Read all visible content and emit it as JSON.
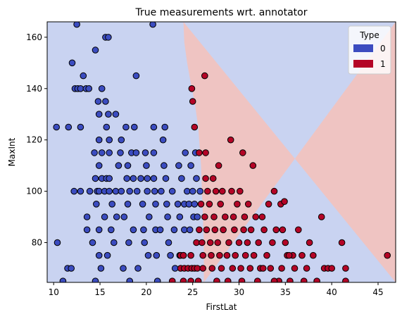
{
  "chart_data": {
    "type": "scatter",
    "title": "True measurements wrt. annotator",
    "xlabel": "FirstLat",
    "ylabel": "MaxInt",
    "xlim": [
      9.3,
      46.9
    ],
    "ylim": [
      64.5,
      166
    ],
    "xticks": [
      10,
      15,
      20,
      25,
      30,
      35,
      40,
      45
    ],
    "yticks": [
      80,
      100,
      120,
      140,
      160
    ],
    "grid": false,
    "legend": {
      "title": "Type",
      "placement": "top-right",
      "entries": [
        {
          "label": "0",
          "color": "#3b4cc0"
        },
        {
          "label": "1",
          "color": "#b40426"
        }
      ]
    },
    "background_regions": [
      {
        "class": "0",
        "color": "#c9d3f1"
      },
      {
        "class": "1",
        "color": "#efc4c2"
      }
    ],
    "decision_boundary": [
      [
        26.2,
        64.5
      ],
      [
        26.2,
        80
      ],
      [
        26.1,
        90
      ],
      [
        26.0,
        100
      ],
      [
        25.9,
        110
      ],
      [
        25.6,
        125
      ],
      [
        25.2,
        135
      ],
      [
        24.8,
        142
      ],
      [
        24.4,
        150
      ],
      [
        24.1,
        158
      ],
      [
        24.0,
        166
      ]
    ],
    "series": [
      {
        "name": "0",
        "color": "#3b4cc0",
        "points": [
          [
            10.3,
            125
          ],
          [
            10.4,
            80
          ],
          [
            11.0,
            65
          ],
          [
            11.5,
            70
          ],
          [
            11.6,
            125
          ],
          [
            11.9,
            70
          ],
          [
            12.0,
            150
          ],
          [
            12.2,
            100
          ],
          [
            12.3,
            140
          ],
          [
            12.5,
            165
          ],
          [
            12.6,
            140
          ],
          [
            12.9,
            125
          ],
          [
            12.9,
            140
          ],
          [
            12.9,
            100
          ],
          [
            13.2,
            145
          ],
          [
            13.5,
            140
          ],
          [
            13.6,
            90
          ],
          [
            13.6,
            85
          ],
          [
            13.8,
            140
          ],
          [
            13.9,
            100
          ],
          [
            14.2,
            80
          ],
          [
            14.4,
            115
          ],
          [
            14.5,
            65
          ],
          [
            14.5,
            155
          ],
          [
            14.5,
            105
          ],
          [
            14.6,
            95
          ],
          [
            14.7,
            100
          ],
          [
            14.8,
            135
          ],
          [
            14.9,
            130
          ],
          [
            14.9,
            120
          ],
          [
            14.9,
            110
          ],
          [
            14.9,
            100
          ],
          [
            14.9,
            85
          ],
          [
            14.9,
            75
          ],
          [
            15.1,
            70
          ],
          [
            15.2,
            140
          ],
          [
            15.2,
            115
          ],
          [
            15.2,
            105
          ],
          [
            15.5,
            100
          ],
          [
            15.5,
            90
          ],
          [
            15.6,
            160
          ],
          [
            15.6,
            135
          ],
          [
            15.7,
            125
          ],
          [
            15.7,
            105
          ],
          [
            15.8,
            75
          ],
          [
            15.9,
            160
          ],
          [
            15.9,
            130
          ],
          [
            16.0,
            120
          ],
          [
            16.0,
            115
          ],
          [
            16.0,
            105
          ],
          [
            16.0,
            100
          ],
          [
            16.2,
            85
          ],
          [
            16.3,
            95
          ],
          [
            16.5,
            80
          ],
          [
            16.7,
            130
          ],
          [
            16.7,
            100
          ],
          [
            16.8,
            90
          ],
          [
            17.0,
            110
          ],
          [
            17.2,
            115
          ],
          [
            17.3,
            120
          ],
          [
            17.3,
            100
          ],
          [
            17.5,
            70
          ],
          [
            17.6,
            90
          ],
          [
            17.8,
            125
          ],
          [
            17.9,
            105
          ],
          [
            18.0,
            110
          ],
          [
            18.0,
            95
          ],
          [
            18.1,
            80
          ],
          [
            18.2,
            65
          ],
          [
            18.2,
            100
          ],
          [
            18.4,
            115
          ],
          [
            18.6,
            105
          ],
          [
            18.6,
            85
          ],
          [
            18.7,
            125
          ],
          [
            18.9,
            145
          ],
          [
            18.9,
            115
          ],
          [
            19.0,
            100
          ],
          [
            19.1,
            70
          ],
          [
            19.4,
            105
          ],
          [
            19.6,
            95
          ],
          [
            19.7,
            85
          ],
          [
            19.8,
            80
          ],
          [
            19.9,
            115
          ],
          [
            20.0,
            110
          ],
          [
            20.1,
            105
          ],
          [
            20.1,
            100
          ],
          [
            20.2,
            75
          ],
          [
            20.3,
            90
          ],
          [
            20.7,
            165
          ],
          [
            20.8,
            125
          ],
          [
            20.8,
            115
          ],
          [
            20.8,
            105
          ],
          [
            20.9,
            100
          ],
          [
            21.0,
            95
          ],
          [
            21.0,
            85
          ],
          [
            21.1,
            75
          ],
          [
            21.2,
            65
          ],
          [
            21.5,
            85
          ],
          [
            21.6,
            100
          ],
          [
            21.8,
            120
          ],
          [
            21.9,
            110
          ],
          [
            22.0,
            125
          ],
          [
            22.1,
            105
          ],
          [
            22.2,
            95
          ],
          [
            22.3,
            90
          ],
          [
            22.4,
            80
          ],
          [
            22.6,
            75
          ],
          [
            22.8,
            100
          ],
          [
            23.0,
            85
          ],
          [
            23.1,
            70
          ],
          [
            23.4,
            95
          ],
          [
            23.5,
            110
          ],
          [
            23.6,
            75
          ],
          [
            23.6,
            90
          ],
          [
            23.8,
            105
          ],
          [
            24.0,
            75
          ],
          [
            24.1,
            85
          ],
          [
            24.1,
            95
          ],
          [
            24.2,
            115
          ],
          [
            24.4,
            100
          ],
          [
            24.6,
            95
          ],
          [
            24.7,
            85
          ],
          [
            24.8,
            110
          ],
          [
            25.0,
            100
          ],
          [
            25.1,
            90
          ],
          [
            25.2,
            95
          ],
          [
            25.3,
            115
          ],
          [
            25.4,
            105
          ],
          [
            25.5,
            90
          ],
          [
            25.8,
            100
          ]
        ]
      },
      {
        "name": "1",
        "color": "#b40426",
        "points": [
          [
            22.8,
            65
          ],
          [
            23.7,
            75
          ],
          [
            23.7,
            70
          ],
          [
            24.0,
            75
          ],
          [
            24.0,
            65
          ],
          [
            24.1,
            70
          ],
          [
            24.5,
            70
          ],
          [
            24.8,
            65
          ],
          [
            24.8,
            75
          ],
          [
            24.9,
            70
          ],
          [
            24.9,
            140
          ],
          [
            25.0,
            135
          ],
          [
            25.2,
            70
          ],
          [
            25.2,
            125
          ],
          [
            25.4,
            80
          ],
          [
            25.5,
            70
          ],
          [
            25.6,
            65
          ],
          [
            25.7,
            85
          ],
          [
            25.7,
            115
          ],
          [
            25.9,
            95
          ],
          [
            26.0,
            80
          ],
          [
            26.1,
            75
          ],
          [
            26.1,
            70
          ],
          [
            26.3,
            90
          ],
          [
            26.3,
            145
          ],
          [
            26.4,
            115
          ],
          [
            26.4,
            105
          ],
          [
            26.5,
            85
          ],
          [
            26.6,
            100
          ],
          [
            26.8,
            95
          ],
          [
            26.9,
            80
          ],
          [
            27.0,
            75
          ],
          [
            27.1,
            70
          ],
          [
            27.2,
            105
          ],
          [
            27.3,
            90
          ],
          [
            27.4,
            85
          ],
          [
            27.5,
            100
          ],
          [
            27.6,
            65
          ],
          [
            27.7,
            80
          ],
          [
            27.8,
            110
          ],
          [
            27.9,
            75
          ],
          [
            28.0,
            95
          ],
          [
            28.1,
            70
          ],
          [
            28.2,
            100
          ],
          [
            28.3,
            85
          ],
          [
            28.5,
            90
          ],
          [
            28.7,
            75
          ],
          [
            28.8,
            65
          ],
          [
            28.9,
            80
          ],
          [
            29.1,
            120
          ],
          [
            29.2,
            100
          ],
          [
            29.3,
            70
          ],
          [
            29.4,
            90
          ],
          [
            29.5,
            85
          ],
          [
            29.6,
            75
          ],
          [
            29.8,
            95
          ],
          [
            30.0,
            80
          ],
          [
            30.1,
            100
          ],
          [
            30.2,
            70
          ],
          [
            30.3,
            65
          ],
          [
            30.4,
            115
          ],
          [
            30.5,
            85
          ],
          [
            30.6,
            90
          ],
          [
            30.7,
            75
          ],
          [
            30.9,
            80
          ],
          [
            31.0,
            95
          ],
          [
            31.2,
            70
          ],
          [
            31.3,
            85
          ],
          [
            31.5,
            110
          ],
          [
            31.6,
            75
          ],
          [
            31.8,
            90
          ],
          [
            32.0,
            65
          ],
          [
            32.1,
            80
          ],
          [
            32.3,
            70
          ],
          [
            32.5,
            90
          ],
          [
            32.7,
            85
          ],
          [
            33.0,
            75
          ],
          [
            33.2,
            95
          ],
          [
            33.4,
            70
          ],
          [
            33.6,
            80
          ],
          [
            33.8,
            100
          ],
          [
            34.0,
            85
          ],
          [
            34.3,
            65
          ],
          [
            34.5,
            95
          ],
          [
            34.6,
            70
          ],
          [
            34.7,
            85
          ],
          [
            34.9,
            96
          ],
          [
            35.0,
            80
          ],
          [
            35.2,
            75
          ],
          [
            35.5,
            65
          ],
          [
            35.8,
            75
          ],
          [
            36.0,
            70
          ],
          [
            36.4,
            85
          ],
          [
            36.8,
            75
          ],
          [
            37.0,
            65
          ],
          [
            37.3,
            70
          ],
          [
            37.6,
            80
          ],
          [
            38.0,
            75
          ],
          [
            38.4,
            65
          ],
          [
            38.9,
            90
          ],
          [
            39.2,
            70
          ],
          [
            39.6,
            70
          ],
          [
            40.0,
            70
          ],
          [
            41.1,
            80
          ],
          [
            41.5,
            65
          ],
          [
            41.5,
            70
          ],
          [
            46.0,
            75
          ],
          [
            32.6,
            70
          ],
          [
            33.8,
            65
          ],
          [
            35.4,
            75
          ]
        ]
      }
    ]
  }
}
